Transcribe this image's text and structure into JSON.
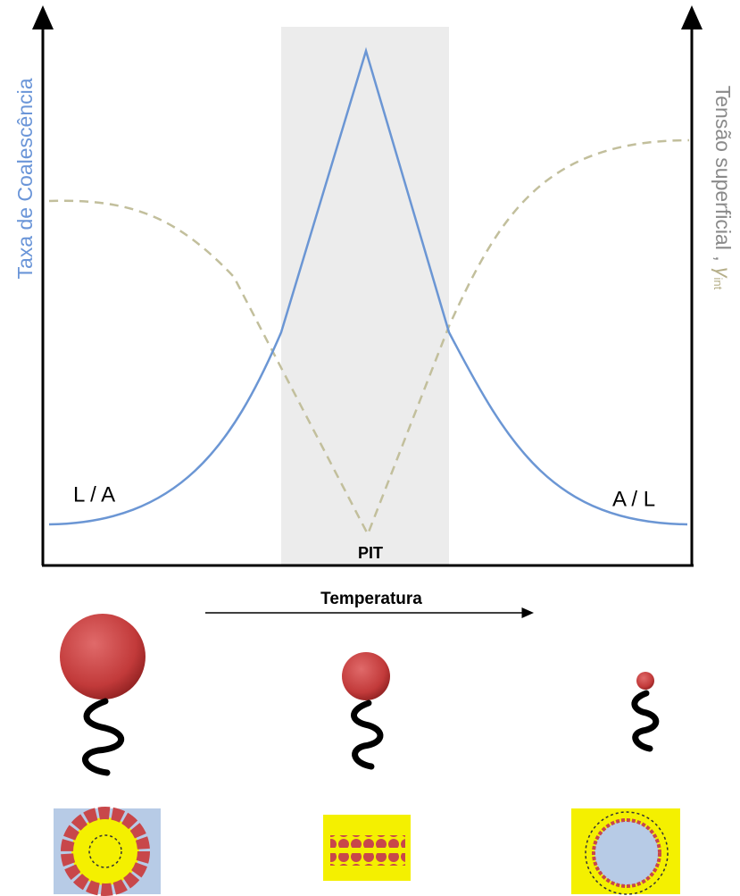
{
  "axes": {
    "left_label": "Taxa de Coalescência",
    "right_label": "Tensão superficial ,",
    "right_symbol": "γ",
    "right_symbol_subscript": "int",
    "x_label": "Temperatura"
  },
  "annotations": {
    "left_region": "L / A",
    "right_region": "A / L",
    "center": "PIT"
  }
}
